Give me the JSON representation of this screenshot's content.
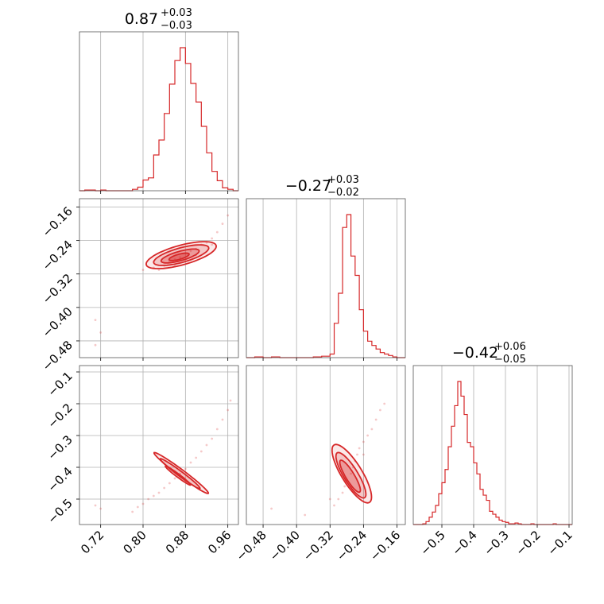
{
  "chart_data": {
    "type": "corner",
    "color": "#d62728",
    "grid": true,
    "panels": [
      {
        "kind": "hist",
        "row": 0,
        "col": 0,
        "title": {
          "value": "0.87",
          "plus": "+0.03",
          "minus": "−0.03"
        },
        "xlim": [
          0.68,
          0.98
        ],
        "xticks": [
          0.72,
          0.8,
          0.88,
          0.96
        ],
        "bins_x": [
          0.68,
          0.69,
          0.7,
          0.71,
          0.72,
          0.73,
          0.74,
          0.75,
          0.76,
          0.77,
          0.78,
          0.79,
          0.8,
          0.81,
          0.82,
          0.83,
          0.84,
          0.85,
          0.86,
          0.87,
          0.88,
          0.89,
          0.9,
          0.91,
          0.92,
          0.93,
          0.94,
          0.95,
          0.96,
          0.97,
          0.98
        ],
        "counts": [
          0,
          1,
          1,
          0,
          1,
          0,
          0,
          0,
          0,
          0,
          2,
          5,
          15,
          18,
          50,
          71,
          108,
          149,
          182,
          200,
          178,
          150,
          124,
          90,
          53,
          27,
          14,
          4,
          2,
          0
        ]
      },
      {
        "kind": "scatter2d",
        "row": 1,
        "col": 0,
        "xlim": [
          0.68,
          0.98
        ],
        "ylim": [
          -0.52,
          -0.14
        ],
        "xticks": [
          0.72,
          0.8,
          0.88,
          0.96
        ],
        "yticks": [
          -0.16,
          -0.24,
          -0.32,
          -0.4,
          -0.48
        ],
        "ytick_labels": [
          "−0.16",
          "−0.24",
          "−0.32",
          "−0.40",
          "−0.48"
        ],
        "points": [
          [
            0.8,
            -0.31
          ],
          [
            0.82,
            -0.305
          ],
          [
            0.84,
            -0.3
          ],
          [
            0.85,
            -0.29
          ],
          [
            0.86,
            -0.285
          ],
          [
            0.87,
            -0.28
          ],
          [
            0.88,
            -0.27
          ],
          [
            0.89,
            -0.265
          ],
          [
            0.9,
            -0.26
          ],
          [
            0.91,
            -0.25
          ],
          [
            0.92,
            -0.245
          ],
          [
            0.93,
            -0.235
          ],
          [
            0.94,
            -0.22
          ],
          [
            0.95,
            -0.2
          ],
          [
            0.96,
            -0.18
          ],
          [
            0.83,
            -0.31
          ],
          [
            0.86,
            -0.3
          ],
          [
            0.9,
            -0.275
          ],
          [
            0.93,
            -0.25
          ],
          [
            0.71,
            -0.43
          ],
          [
            0.72,
            -0.46
          ],
          [
            0.71,
            -0.49
          ]
        ],
        "contours": [
          {
            "cx": 0.872,
            "cy": -0.275,
            "rx": 0.07,
            "ry": 0.023,
            "angle": 0.35
          },
          {
            "cx": 0.872,
            "cy": -0.275,
            "rx": 0.055,
            "ry": 0.017,
            "angle": 0.35
          },
          {
            "cx": 0.87,
            "cy": -0.277,
            "rx": 0.038,
            "ry": 0.011,
            "angle": 0.35
          },
          {
            "cx": 0.868,
            "cy": -0.279,
            "rx": 0.02,
            "ry": 0.006,
            "angle": 0.35
          }
        ]
      },
      {
        "kind": "hist",
        "row": 1,
        "col": 1,
        "title": {
          "value": "−0.27",
          "plus": "+0.03",
          "minus": "−0.02"
        },
        "xlim": [
          -0.52,
          -0.14
        ],
        "xticks": [
          -0.48,
          -0.4,
          -0.32,
          -0.24,
          -0.16
        ],
        "bins_x": [
          -0.52,
          -0.5,
          -0.48,
          -0.46,
          -0.44,
          -0.42,
          -0.4,
          -0.38,
          -0.36,
          -0.34,
          -0.32,
          -0.31,
          -0.3,
          -0.29,
          -0.28,
          -0.27,
          -0.26,
          -0.25,
          -0.24,
          -0.23,
          -0.22,
          -0.21,
          -0.2,
          -0.19,
          -0.18,
          -0.17,
          -0.16,
          -0.15,
          -0.14
        ],
        "counts": [
          0,
          1,
          0,
          1,
          0,
          0,
          0,
          0,
          1,
          2,
          5,
          48,
          90,
          182,
          200,
          142,
          115,
          67,
          37,
          23,
          17,
          12,
          7,
          5,
          3,
          1,
          0,
          0
        ]
      },
      {
        "kind": "scatter2d",
        "row": 2,
        "col": 0,
        "xlim": [
          0.68,
          0.98
        ],
        "ylim": [
          -0.58,
          -0.08
        ],
        "xticks": [
          0.72,
          0.8,
          0.88,
          0.96
        ],
        "yticks": [
          -0.1,
          -0.2,
          -0.3,
          -0.4,
          -0.5
        ],
        "ytick_labels": [
          "−0.1",
          "−0.2",
          "−0.3",
          "−0.4",
          "−0.5"
        ],
        "points": [
          [
            0.78,
            -0.54
          ],
          [
            0.79,
            -0.525
          ],
          [
            0.8,
            -0.515
          ],
          [
            0.81,
            -0.5
          ],
          [
            0.82,
            -0.49
          ],
          [
            0.83,
            -0.48
          ],
          [
            0.84,
            -0.465
          ],
          [
            0.85,
            -0.45
          ],
          [
            0.86,
            -0.435
          ],
          [
            0.87,
            -0.42
          ],
          [
            0.88,
            -0.405
          ],
          [
            0.89,
            -0.385
          ],
          [
            0.9,
            -0.37
          ],
          [
            0.91,
            -0.35
          ],
          [
            0.92,
            -0.33
          ],
          [
            0.93,
            -0.31
          ],
          [
            0.94,
            -0.28
          ],
          [
            0.95,
            -0.25
          ],
          [
            0.96,
            -0.22
          ],
          [
            0.965,
            -0.19
          ],
          [
            0.72,
            -0.53
          ],
          [
            0.71,
            -0.52
          ]
        ],
        "contours": [
          {
            "cx": 0.872,
            "cy": -0.418,
            "rx": 0.082,
            "ry": 0.008,
            "angle": -0.9
          },
          {
            "cx": 0.87,
            "cy": -0.42,
            "rx": 0.06,
            "ry": 0.006,
            "angle": -0.9
          },
          {
            "cx": 0.866,
            "cy": -0.426,
            "rx": 0.038,
            "ry": 0.004,
            "angle": -0.9
          }
        ]
      },
      {
        "kind": "scatter2d",
        "row": 2,
        "col": 1,
        "xlim": [
          -0.52,
          -0.14
        ],
        "ylim": [
          -0.58,
          -0.08
        ],
        "xticks": [
          -0.48,
          -0.4,
          -0.32,
          -0.24,
          -0.16
        ],
        "points": [
          [
            -0.31,
            -0.52
          ],
          [
            -0.3,
            -0.5
          ],
          [
            -0.29,
            -0.48
          ],
          [
            -0.285,
            -0.46
          ],
          [
            -0.28,
            -0.44
          ],
          [
            -0.27,
            -0.42
          ],
          [
            -0.265,
            -0.4
          ],
          [
            -0.26,
            -0.38
          ],
          [
            -0.255,
            -0.36
          ],
          [
            -0.25,
            -0.34
          ],
          [
            -0.24,
            -0.32
          ],
          [
            -0.23,
            -0.3
          ],
          [
            -0.22,
            -0.28
          ],
          [
            -0.21,
            -0.25
          ],
          [
            -0.2,
            -0.22
          ],
          [
            -0.19,
            -0.2
          ],
          [
            -0.32,
            -0.5
          ],
          [
            -0.24,
            -0.36
          ],
          [
            -0.46,
            -0.53
          ],
          [
            -0.38,
            -0.55
          ]
        ],
        "contours": [
          {
            "cx": -0.268,
            "cy": -0.42,
            "rx": 0.1,
            "ry": 0.026,
            "angle": -1.15
          },
          {
            "cx": -0.27,
            "cy": -0.425,
            "rx": 0.078,
            "ry": 0.018,
            "angle": -1.15
          },
          {
            "cx": -0.272,
            "cy": -0.428,
            "rx": 0.055,
            "ry": 0.011,
            "angle": -1.15
          }
        ]
      },
      {
        "kind": "hist",
        "row": 2,
        "col": 2,
        "title": {
          "value": "−0.42",
          "plus": "+0.06",
          "minus": "−0.05"
        },
        "xlim": [
          -0.59,
          -0.09
        ],
        "xticks": [
          -0.5,
          -0.4,
          -0.3,
          -0.2,
          -0.1
        ],
        "bins_x": [
          -0.59,
          -0.58,
          -0.57,
          -0.56,
          -0.55,
          -0.54,
          -0.53,
          -0.52,
          -0.51,
          -0.5,
          -0.49,
          -0.48,
          -0.47,
          -0.46,
          -0.45,
          -0.44,
          -0.43,
          -0.42,
          -0.41,
          -0.4,
          -0.39,
          -0.38,
          -0.37,
          -0.36,
          -0.35,
          -0.34,
          -0.33,
          -0.32,
          -0.31,
          -0.3,
          -0.29,
          -0.28,
          -0.27,
          -0.26,
          -0.25,
          -0.24,
          -0.23,
          -0.22,
          -0.21,
          -0.2,
          -0.19,
          -0.18,
          -0.17,
          -0.16,
          -0.15,
          -0.14,
          -0.13,
          -0.12,
          -0.11,
          -0.1,
          -0.09
        ],
        "counts": [
          0,
          0,
          0,
          1,
          4,
          10,
          17,
          26,
          42,
          57,
          75,
          106,
          134,
          162,
          195,
          175,
          150,
          112,
          106,
          84,
          69,
          48,
          40,
          33,
          18,
          14,
          10,
          6,
          4,
          3,
          1,
          1,
          2,
          1,
          0,
          0,
          0,
          1,
          0,
          0,
          0,
          0,
          0,
          0,
          1,
          0,
          0,
          0,
          0,
          0
        ]
      }
    ]
  }
}
